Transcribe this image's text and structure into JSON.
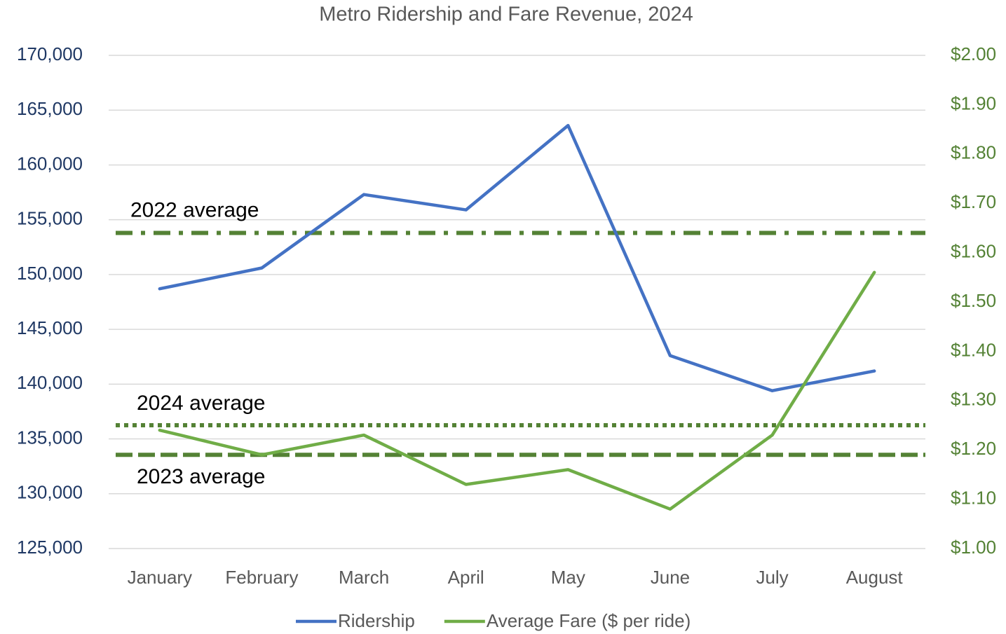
{
  "chart_data": {
    "type": "line",
    "title": "Metro Ridership and Fare Revenue, 2024",
    "categories": [
      "January",
      "February",
      "March",
      "April",
      "May",
      "June",
      "July",
      "August"
    ],
    "series": [
      {
        "name": "Ridership",
        "color": "#4472c4",
        "values": [
          148700,
          150600,
          157300,
          155900,
          163600,
          142600,
          139400,
          141200
        ]
      },
      {
        "name": "Average Fare ($ per ride)",
        "color": "#70ad47",
        "axis": "y2",
        "values": [
          1.24,
          1.19,
          1.23,
          1.13,
          1.16,
          1.08,
          1.23,
          1.56
        ]
      }
    ],
    "reference_lines": [
      {
        "label": "2022 average",
        "value": 1.64,
        "axis": "y2",
        "style": "dash-dot",
        "color": "#548235"
      },
      {
        "label": "2024 average",
        "value": 1.25,
        "axis": "y2",
        "style": "dotted",
        "color": "#548235"
      },
      {
        "label": "2023 average",
        "value": 1.19,
        "axis": "y2",
        "style": "dashed",
        "color": "#548235"
      }
    ],
    "ylim": [
      125000,
      170000
    ],
    "yticks": [
      {
        "value": 125000,
        "label": "125,000"
      },
      {
        "value": 130000,
        "label": "130,000"
      },
      {
        "value": 135000,
        "label": "135,000"
      },
      {
        "value": 140000,
        "label": "140,000"
      },
      {
        "value": 145000,
        "label": "145,000"
      },
      {
        "value": 150000,
        "label": "150,000"
      },
      {
        "value": 155000,
        "label": "155,000"
      },
      {
        "value": 160000,
        "label": "160,000"
      },
      {
        "value": 165000,
        "label": "165,000"
      },
      {
        "value": 170000,
        "label": "170,000"
      }
    ],
    "y2lim": [
      1.0,
      2.0
    ],
    "y2ticks": [
      {
        "value": 1.0,
        "label": "$1.00"
      },
      {
        "value": 1.1,
        "label": "$1.10"
      },
      {
        "value": 1.2,
        "label": "$1.20"
      },
      {
        "value": 1.3,
        "label": "$1.30"
      },
      {
        "value": 1.4,
        "label": "$1.40"
      },
      {
        "value": 1.5,
        "label": "$1.50"
      },
      {
        "value": 1.6,
        "label": "$1.60"
      },
      {
        "value": 1.7,
        "label": "$1.70"
      },
      {
        "value": 1.8,
        "label": "$1.80"
      },
      {
        "value": 1.9,
        "label": "$1.90"
      },
      {
        "value": 2.0,
        "label": "$2.00"
      }
    ],
    "y_color": "#1f3864",
    "y2_color": "#548235",
    "grid": true,
    "legend": "bottom"
  }
}
